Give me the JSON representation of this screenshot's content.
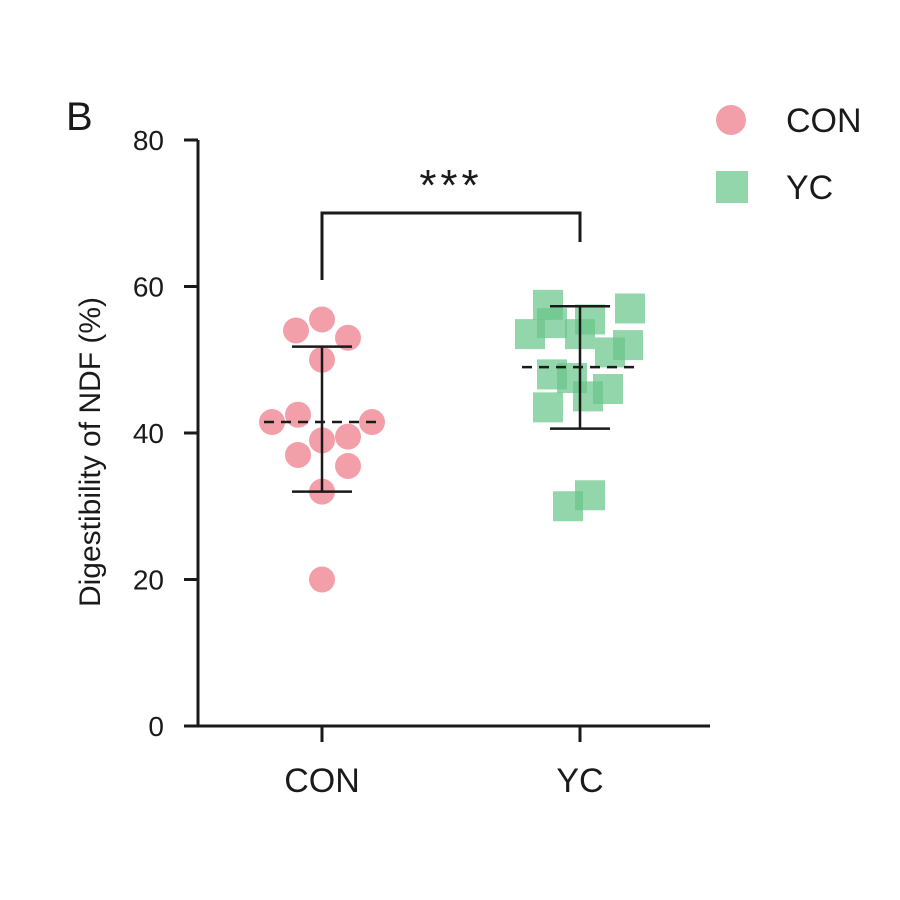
{
  "panel_label": "B",
  "chart_data": {
    "type": "scatter",
    "title": "",
    "xlabel": "",
    "ylabel": "Digestibility of NDF (%)",
    "ylim": [
      0,
      80
    ],
    "yticks": [
      0,
      20,
      40,
      60,
      80
    ],
    "categories": [
      "CON",
      "YC"
    ],
    "grid": false,
    "legend_position": "top-right",
    "series": [
      {
        "name": "CON",
        "marker": "circle",
        "color": "#f08a96",
        "points": [
          55.5,
          54.0,
          53.0,
          50.0,
          42.5,
          41.5,
          41.5,
          39.5,
          39.0,
          37.0,
          35.5,
          32.0,
          20.0
        ],
        "mean": 41.5,
        "error_upper": 51.8,
        "error_lower": 32.0
      },
      {
        "name": "YC",
        "marker": "square",
        "color": "#66c487",
        "points": [
          57.5,
          57.0,
          55.5,
          55.0,
          53.5,
          53.5,
          52.0,
          51.0,
          48.0,
          47.5,
          46.0,
          45.0,
          43.5,
          31.5,
          30.0
        ],
        "mean": 49.0,
        "error_upper": 57.3,
        "error_lower": 40.6
      }
    ],
    "significance": {
      "label": "***",
      "between": [
        "CON",
        "YC"
      ]
    }
  }
}
